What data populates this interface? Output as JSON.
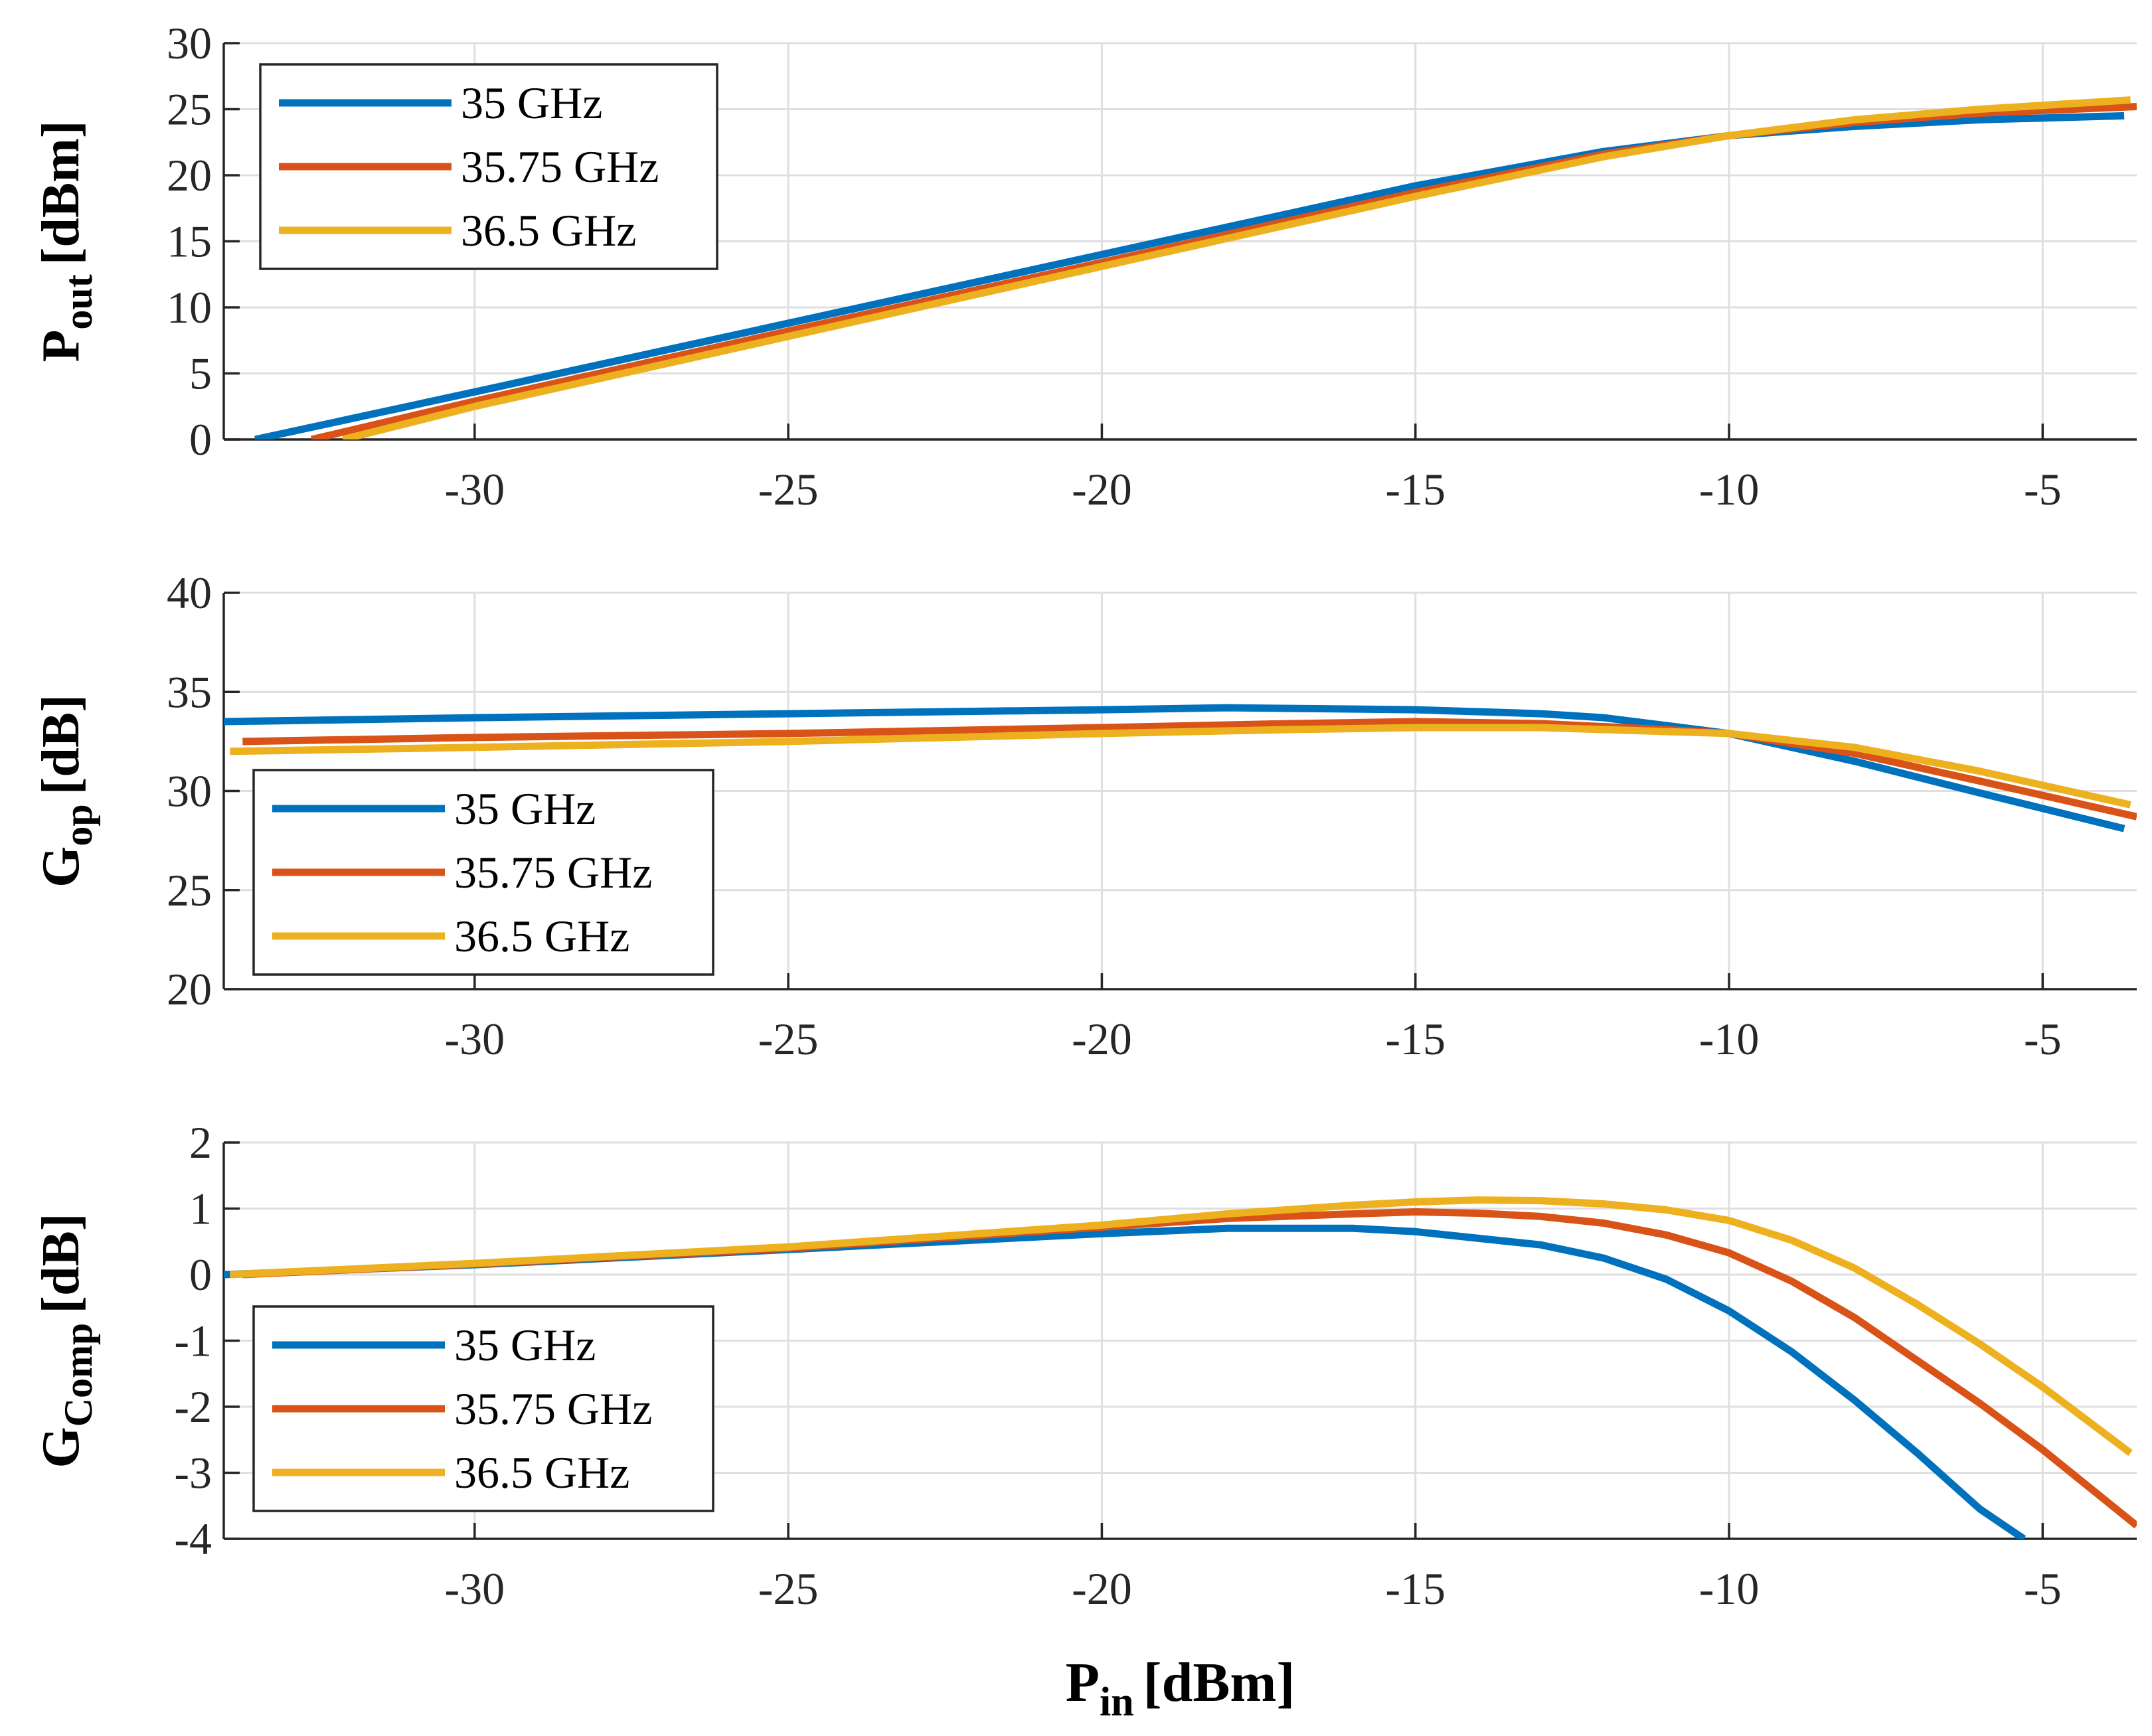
{
  "chart_data": [
    {
      "type": "line",
      "id": "pout",
      "ylabel_main": "P",
      "ylabel_sub": "out",
      "ylabel_unit": "[dBm]",
      "xlim": [
        -34,
        -3.5
      ],
      "ylim": [
        0,
        30
      ],
      "xticks": [
        -30,
        -25,
        -20,
        -15,
        -10,
        -5
      ],
      "xtick_labels": [
        "-30",
        "-25",
        "-20",
        "-15",
        "-10",
        "-5"
      ],
      "yticks": [
        0,
        5,
        10,
        15,
        20,
        25,
        30
      ],
      "ytick_labels": [
        "0",
        "5",
        "10",
        "15",
        "20",
        "25",
        "30"
      ],
      "grid": true,
      "legend_position": "top-left",
      "series": [
        {
          "name": "35 GHz",
          "color": "#0072BD",
          "x": [
            -33.5,
            -30,
            -25,
            -20,
            -15,
            -12,
            -10,
            -8,
            -6,
            -3.7
          ],
          "y": [
            0,
            3.6,
            8.8,
            14.0,
            19.2,
            21.8,
            23.0,
            23.7,
            24.2,
            24.5
          ]
        },
        {
          "name": "35.75 GHz",
          "color": "#D95319",
          "x": [
            -32.6,
            -30,
            -25,
            -20,
            -15,
            -12,
            -10,
            -8,
            -6,
            -3.5
          ],
          "y": [
            0,
            2.9,
            8.2,
            13.4,
            18.7,
            21.6,
            23.0,
            24.0,
            24.7,
            25.2
          ]
        },
        {
          "name": "36.5 GHz",
          "color": "#EDB120",
          "x": [
            -32.1,
            -30,
            -25,
            -20,
            -15,
            -12,
            -10,
            -8,
            -6,
            -3.6
          ],
          "y": [
            0,
            2.5,
            7.8,
            13.1,
            18.4,
            21.4,
            23.0,
            24.2,
            25.0,
            25.7
          ]
        }
      ]
    },
    {
      "type": "line",
      "id": "gop",
      "ylabel_main": "G",
      "ylabel_sub": "op",
      "ylabel_unit": "[dB]",
      "xlim": [
        -34,
        -3.5
      ],
      "ylim": [
        20,
        40
      ],
      "xticks": [
        -30,
        -25,
        -20,
        -15,
        -10,
        -5
      ],
      "xtick_labels": [
        "-30",
        "-25",
        "-20",
        "-15",
        "-10",
        "-5"
      ],
      "yticks": [
        20,
        25,
        30,
        35,
        40
      ],
      "ytick_labels": [
        "20",
        "25",
        "30",
        "35",
        "40"
      ],
      "grid": true,
      "legend_position": "bottom-left",
      "series": [
        {
          "name": "35 GHz",
          "color": "#0072BD",
          "x": [
            -34,
            -30,
            -25,
            -20,
            -18,
            -15,
            -13,
            -12,
            -11,
            -10,
            -8,
            -6,
            -3.7
          ],
          "y": [
            33.5,
            33.7,
            33.9,
            34.1,
            34.2,
            34.1,
            33.9,
            33.7,
            33.3,
            32.9,
            31.5,
            29.9,
            28.1
          ]
        },
        {
          "name": "35.75 GHz",
          "color": "#D95319",
          "x": [
            -33.7,
            -30,
            -25,
            -20,
            -17,
            -15,
            -13,
            -11,
            -10,
            -8,
            -6,
            -3.5
          ],
          "y": [
            32.5,
            32.7,
            32.9,
            33.2,
            33.4,
            33.5,
            33.4,
            33.1,
            32.9,
            31.9,
            30.5,
            28.7
          ]
        },
        {
          "name": "36.5 GHz",
          "color": "#EDB120",
          "x": [
            -33.9,
            -30,
            -25,
            -20,
            -17,
            -15,
            -13,
            -11,
            -10,
            -8,
            -6,
            -3.6
          ],
          "y": [
            32.0,
            32.2,
            32.5,
            32.9,
            33.1,
            33.2,
            33.2,
            33.0,
            32.9,
            32.2,
            31.0,
            29.3
          ]
        }
      ]
    },
    {
      "type": "line",
      "id": "gcomp",
      "ylabel_main": "G",
      "ylabel_sub": "Comp",
      "ylabel_unit": "[dB]",
      "xlabel_main": "P",
      "xlabel_sub": "in",
      "xlabel_unit": "[dBm]",
      "xlim": [
        -34,
        -3.5
      ],
      "ylim": [
        -4,
        2
      ],
      "xticks": [
        -30,
        -25,
        -20,
        -15,
        -10,
        -5
      ],
      "xtick_labels": [
        "-30",
        "-25",
        "-20",
        "-15",
        "-10",
        "-5"
      ],
      "yticks": [
        -4,
        -3,
        -2,
        -1,
        0,
        1,
        2
      ],
      "ytick_labels": [
        "-4",
        "-3",
        "-2",
        "-1",
        "0",
        "1",
        "2"
      ],
      "grid": true,
      "legend_position": "bottom-left",
      "series": [
        {
          "name": "35 GHz",
          "color": "#0072BD",
          "x": [
            -34,
            -30,
            -25,
            -20,
            -18,
            -16,
            -15,
            -13,
            -12,
            -11,
            -10,
            -9,
            -8,
            -7,
            -6,
            -5.3
          ],
          "y": [
            0,
            0.15,
            0.38,
            0.62,
            0.7,
            0.7,
            0.65,
            0.45,
            0.25,
            -0.07,
            -0.55,
            -1.17,
            -1.9,
            -2.7,
            -3.55,
            -4.0
          ]
        },
        {
          "name": "35.75 GHz",
          "color": "#D95319",
          "x": [
            -33.7,
            -30,
            -25,
            -20,
            -18,
            -16,
            -15,
            -14,
            -13,
            -12,
            -11,
            -10,
            -9,
            -8,
            -7,
            -6,
            -5,
            -3.5
          ],
          "y": [
            0,
            0.16,
            0.4,
            0.72,
            0.85,
            0.92,
            0.95,
            0.93,
            0.88,
            0.78,
            0.6,
            0.33,
            -0.1,
            -0.65,
            -1.3,
            -1.95,
            -2.65,
            -3.8
          ]
        },
        {
          "name": "36.5 GHz",
          "color": "#EDB120",
          "x": [
            -33.9,
            -30,
            -25,
            -20,
            -18,
            -16,
            -15,
            -14,
            -13,
            -12,
            -11,
            -10,
            -9,
            -8,
            -7,
            -6,
            -5,
            -3.6
          ],
          "y": [
            0,
            0.17,
            0.42,
            0.75,
            0.92,
            1.05,
            1.1,
            1.13,
            1.12,
            1.07,
            0.98,
            0.82,
            0.52,
            0.1,
            -0.45,
            -1.05,
            -1.7,
            -2.7
          ]
        }
      ]
    }
  ]
}
